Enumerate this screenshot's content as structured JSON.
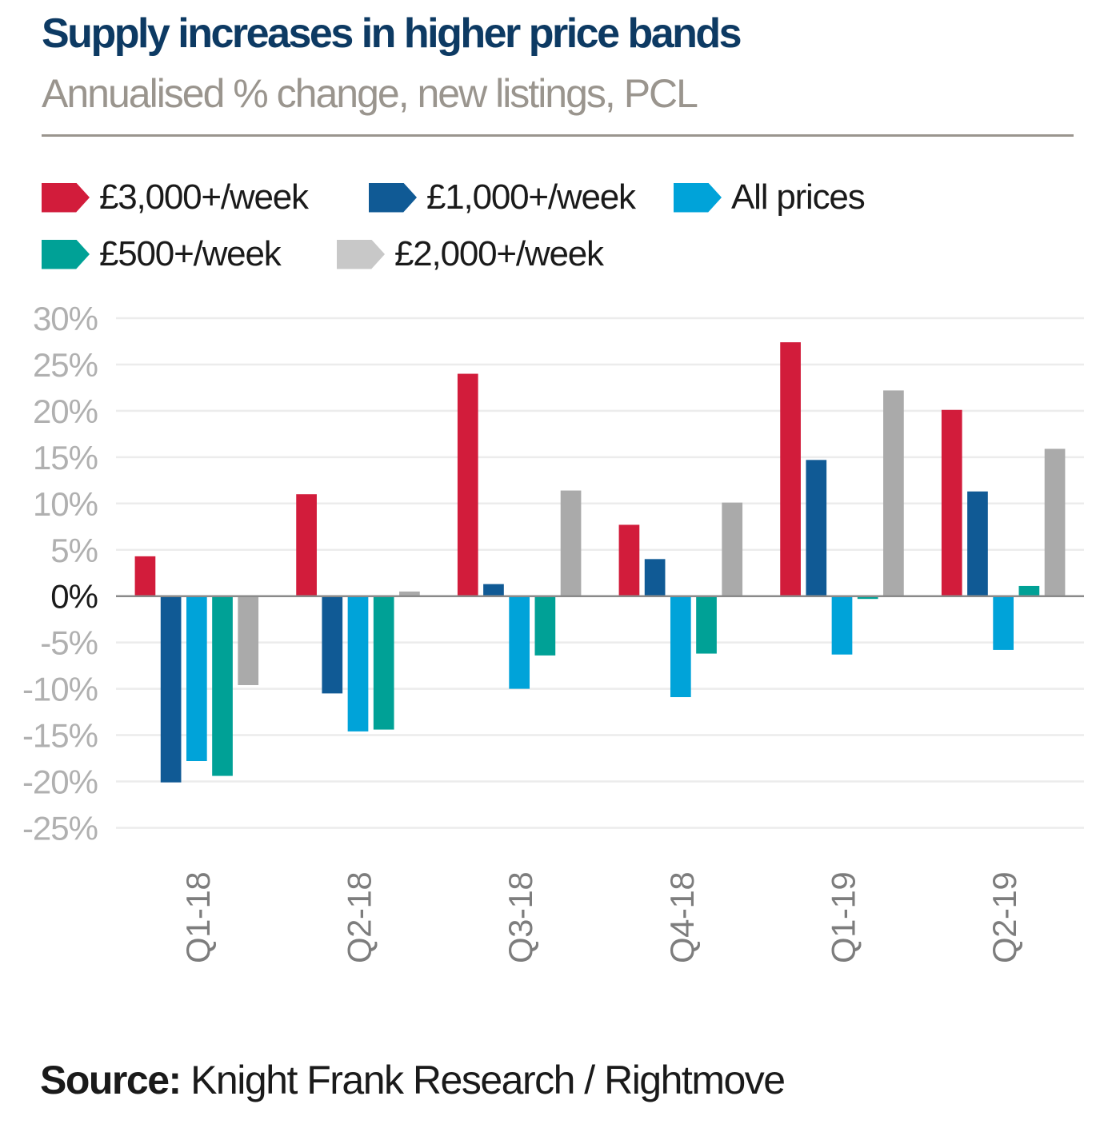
{
  "header": {
    "title": "Supply increases in higher price bands",
    "subtitle": "Annualised % change, new listings, PCL"
  },
  "legend": [
    {
      "label": "£3,000+/week",
      "color": "#d21c3b"
    },
    {
      "label": "£1,000+/week",
      "color": "#105a95"
    },
    {
      "label": "All prices",
      "color": "#00a3d9"
    },
    {
      "label": "£500+/week",
      "color": "#00a196"
    },
    {
      "label": "£2,000+/week",
      "color": "#c8c8c8"
    }
  ],
  "footer": {
    "source_label": "Source:",
    "source_text": " Knight Frank Research / Rightmove"
  },
  "chart_data": {
    "type": "bar",
    "title": "Supply increases in higher price bands",
    "subtitle": "Annualised % change, new listings, PCL",
    "xlabel": "",
    "ylabel": "",
    "categories": [
      "Q1-18",
      "Q2-18",
      "Q3-18",
      "Q4-18",
      "Q1-19",
      "Q2-19"
    ],
    "series": [
      {
        "name": "£3,000+/week",
        "color": "#d21c3b",
        "values": [
          4.3,
          11.0,
          24.0,
          7.7,
          27.4,
          20.1
        ]
      },
      {
        "name": "£1,000+/week",
        "color": "#105a95",
        "values": [
          -20.1,
          -10.5,
          1.3,
          4.0,
          14.7,
          11.3
        ]
      },
      {
        "name": "All prices",
        "color": "#00a3d9",
        "values": [
          -17.8,
          -14.6,
          -10.0,
          -10.9,
          -6.3,
          -5.8
        ]
      },
      {
        "name": "£500+/week",
        "color": "#00a196",
        "values": [
          -19.4,
          -14.4,
          -6.4,
          -6.2,
          -0.3,
          1.1
        ]
      },
      {
        "name": "£2,000+/week",
        "color": "#aaaaaa",
        "values": [
          -9.6,
          0.5,
          11.4,
          10.1,
          22.2,
          15.9
        ]
      }
    ],
    "ylim": [
      -25,
      30
    ],
    "yticks": [
      30,
      25,
      20,
      15,
      10,
      5,
      0,
      -5,
      -10,
      -15,
      -20,
      -25
    ],
    "ytick_labels": [
      "30%",
      "25%",
      "20%",
      "15%",
      "10%",
      "5%",
      "0%",
      "-5%",
      "-10%",
      "-15%",
      "-20%",
      "-25%"
    ],
    "grid": true,
    "legend_position": "top-left",
    "xtick_rotation": "vertical"
  }
}
